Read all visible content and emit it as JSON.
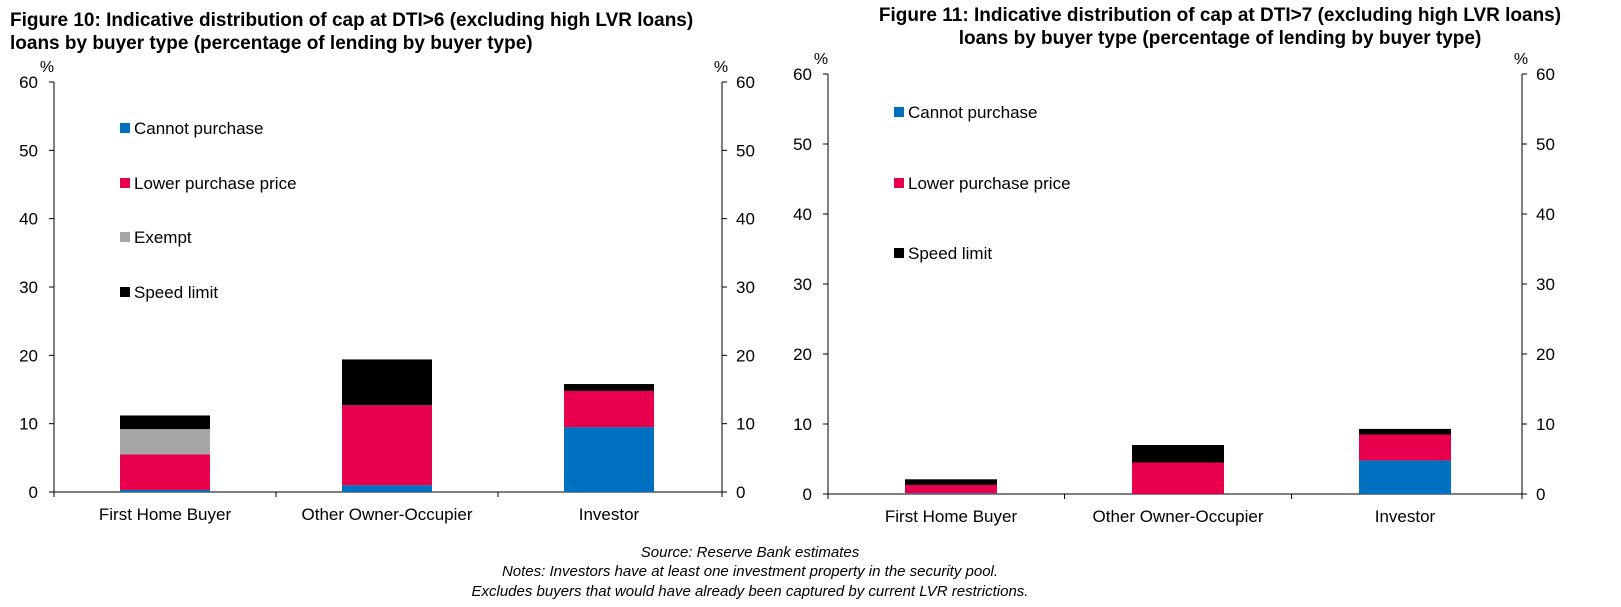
{
  "figures": [
    {
      "title_line1": "Figure 10: Indicative distribution of cap at DTI>6 (excluding high LVR loans)",
      "title_line2": "loans by buyer type (percentage of lending by buyer type)"
    },
    {
      "title_line1": "Figure 11: Indicative distribution of cap at DTI>7 (excluding high LVR loans)",
      "title_line2": "loans by buyer type (percentage of lending by buyer type)"
    }
  ],
  "colors": {
    "Cannot purchase": "#0070c0",
    "Lower purchase price": "#e8004e",
    "Exempt": "#a6a6a6",
    "Speed limit": "#000000"
  },
  "chart_data": [
    {
      "type": "bar",
      "stacked": true,
      "title": "Figure 10: Indicative distribution of cap at DTI>6 (excluding high LVR loans) loans by buyer type (percentage of lending by buyer type)",
      "categories": [
        "First Home Buyer",
        "Other Owner-Occupier",
        "Investor"
      ],
      "series": [
        {
          "name": "Cannot purchase",
          "values": [
            0.3,
            1.0,
            9.5
          ]
        },
        {
          "name": "Lower purchase price",
          "values": [
            5.2,
            11.7,
            5.3
          ]
        },
        {
          "name": "Exempt",
          "values": [
            3.7,
            0,
            0
          ]
        },
        {
          "name": "Speed limit",
          "values": [
            2.0,
            6.7,
            1.0
          ]
        }
      ],
      "y_unit_left": "%",
      "y_unit_right": "%",
      "ylim": [
        0,
        60
      ],
      "yticks": [
        0,
        10,
        20,
        30,
        40,
        50,
        60
      ],
      "legend_position": "top-left",
      "grid": false
    },
    {
      "type": "bar",
      "stacked": true,
      "title": "Figure 11: Indicative distribution of cap at DTI>7 (excluding high LVR loans) loans by buyer type (percentage of lending by buyer type)",
      "categories": [
        "First Home Buyer",
        "Other Owner-Occupier",
        "Investor"
      ],
      "series": [
        {
          "name": "Cannot purchase",
          "values": [
            0.1,
            0,
            4.8
          ]
        },
        {
          "name": "Lower purchase price",
          "values": [
            1.2,
            4.5,
            3.7
          ]
        },
        {
          "name": "Speed limit",
          "values": [
            0.8,
            2.5,
            0.8
          ]
        }
      ],
      "y_unit_left": "%",
      "y_unit_right": "%",
      "ylim": [
        0,
        60
      ],
      "yticks": [
        0,
        10,
        20,
        30,
        40,
        50,
        60
      ],
      "legend_position": "top-left",
      "grid": false
    }
  ],
  "footnotes": {
    "source": "Source: Reserve Bank estimates",
    "note1": "Notes: Investors have at least one investment property in the security pool.",
    "note2": "Excludes buyers that would have already been captured by current LVR restrictions."
  }
}
